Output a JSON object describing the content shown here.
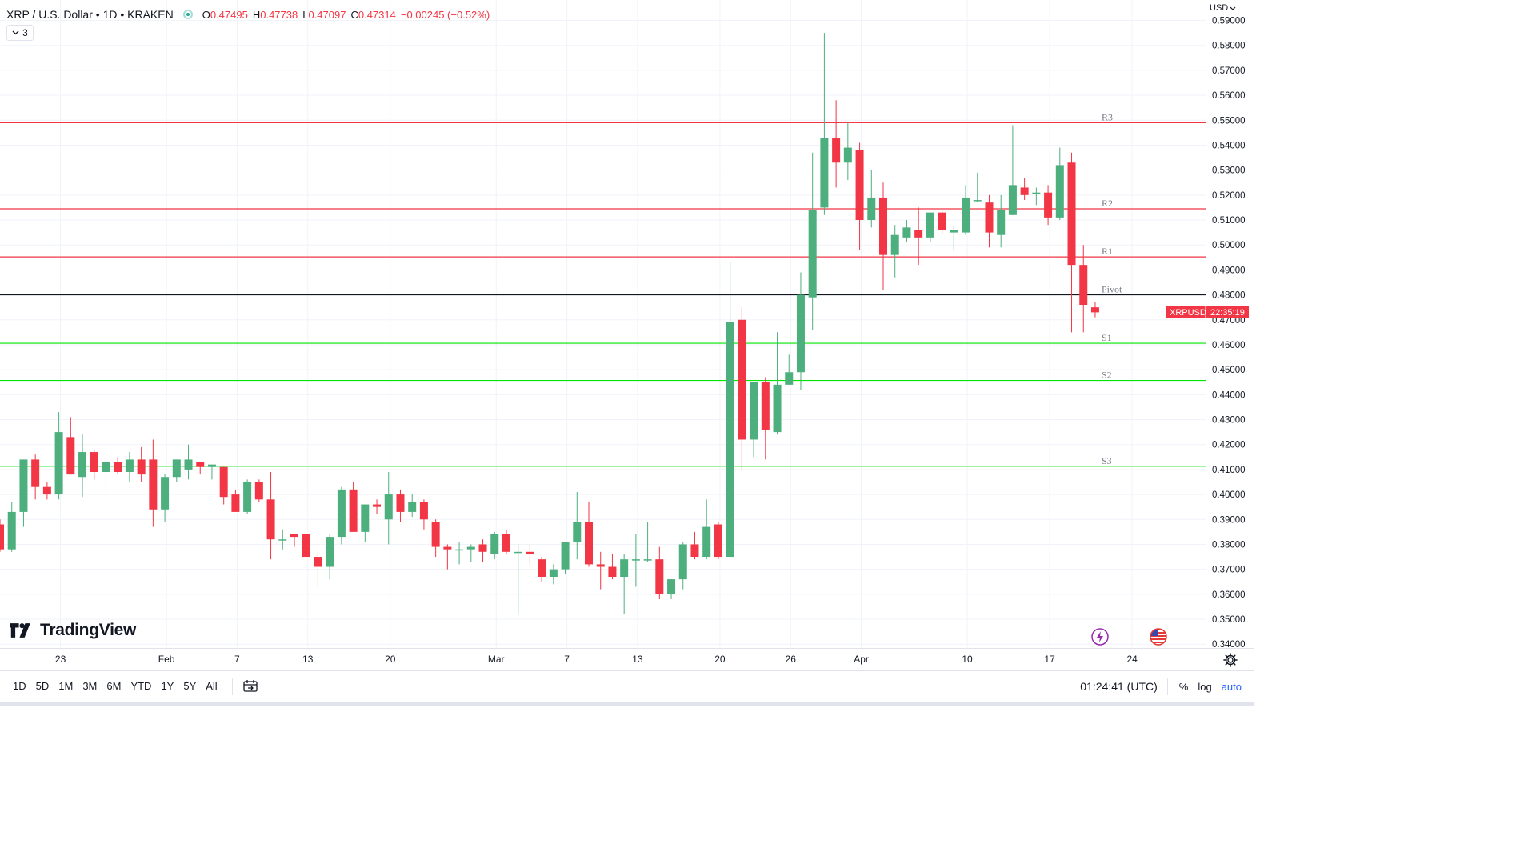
{
  "legend": {
    "title": "XRP / U.S. Dollar • 1D • KRAKEN",
    "o_label": "O",
    "o": "0.47495",
    "h_label": "H",
    "h": "0.47738",
    "l_label": "L",
    "l": "0.47097",
    "c_label": "C",
    "c": "0.47314",
    "change": "−0.00245 (−0.52%)"
  },
  "indicators_count": "3",
  "currency": "USD",
  "symbol_badge": {
    "symbol": "XRPUSD",
    "countdown": "22:35:19",
    "price": 0.47314,
    "color": "#f23645"
  },
  "logo": {
    "text": "TradingView"
  },
  "bottom_bar": {
    "ranges": [
      "1D",
      "5D",
      "1M",
      "3M",
      "6M",
      "YTD",
      "1Y",
      "5Y",
      "All"
    ],
    "clock": "01:24:41 (UTC)",
    "percent": "%",
    "log": "log",
    "auto": "auto"
  },
  "icons": [
    "live-status-icon",
    "chevron-down-icon",
    "goto-date-icon",
    "settings-gear-icon",
    "lightning-icon",
    "us-flag-icon",
    "tradingview-logo-icon"
  ],
  "colors": {
    "up": "#26a69a",
    "up_body": "#4caf7d",
    "down": "#f23645",
    "resistance": "#f23645",
    "support": "#00e600",
    "pivot": "#131722"
  },
  "chart_data": {
    "type": "candlestick",
    "title": "XRP / U.S. Dollar • 1D • KRAKEN",
    "ylim": [
      0.34,
      0.595
    ],
    "y_ticks": [
      0.59,
      0.58,
      0.57,
      0.56,
      0.55,
      0.54,
      0.53,
      0.52,
      0.51,
      0.5,
      0.49,
      0.48,
      0.47,
      0.46,
      0.45,
      0.44,
      0.43,
      0.42,
      0.41,
      0.4,
      0.39,
      0.38,
      0.37,
      0.36,
      0.35,
      0.34
    ],
    "y_tick_labels": [
      "0.59000",
      "0.58000",
      "0.57000",
      "0.56000",
      "0.55000",
      "0.54000",
      "0.53000",
      "0.52000",
      "0.51000",
      "0.50000",
      "0.49000",
      "0.48000",
      "0.47000",
      "0.46000",
      "0.45000",
      "0.44000",
      "0.43000",
      "0.42000",
      "0.41000",
      "0.40000",
      "0.39000",
      "0.38000",
      "0.37000",
      "0.36000",
      "0.35000",
      "0.34000"
    ],
    "x_ticks": [
      {
        "label": "23",
        "index": 5
      },
      {
        "label": "Feb",
        "index": 14
      },
      {
        "label": "7",
        "index": 20
      },
      {
        "label": "13",
        "index": 26
      },
      {
        "label": "20",
        "index": 33
      },
      {
        "label": "Mar",
        "index": 42
      },
      {
        "label": "7",
        "index": 48
      },
      {
        "label": "13",
        "index": 54
      },
      {
        "label": "20",
        "index": 61
      },
      {
        "label": "26",
        "index": 67
      },
      {
        "label": "Apr",
        "index": 73
      },
      {
        "label": "10",
        "index": 82
      },
      {
        "label": "17",
        "index": 89
      },
      {
        "label": "24",
        "index": 96
      }
    ],
    "levels": [
      {
        "name": "R3",
        "value": 0.549,
        "kind": "resistance"
      },
      {
        "name": "R2",
        "value": 0.5145,
        "kind": "resistance"
      },
      {
        "name": "R1",
        "value": 0.4952,
        "kind": "resistance"
      },
      {
        "name": "Pivot",
        "value": 0.48,
        "kind": "pivot"
      },
      {
        "name": "S1",
        "value": 0.4606,
        "kind": "support"
      },
      {
        "name": "S2",
        "value": 0.4457,
        "kind": "support"
      },
      {
        "name": "S3",
        "value": 0.4113,
        "kind": "support"
      }
    ],
    "candles": [
      [
        0.388,
        0.39,
        0.377,
        0.378
      ],
      [
        0.378,
        0.397,
        0.377,
        0.393
      ],
      [
        0.393,
        0.414,
        0.387,
        0.414
      ],
      [
        0.414,
        0.416,
        0.398,
        0.403
      ],
      [
        0.403,
        0.405,
        0.398,
        0.4
      ],
      [
        0.4,
        0.433,
        0.398,
        0.425
      ],
      [
        0.423,
        0.431,
        0.408,
        0.408
      ],
      [
        0.407,
        0.424,
        0.399,
        0.417
      ],
      [
        0.417,
        0.418,
        0.406,
        0.409
      ],
      [
        0.409,
        0.415,
        0.399,
        0.413
      ],
      [
        0.413,
        0.415,
        0.408,
        0.409
      ],
      [
        0.409,
        0.417,
        0.405,
        0.414
      ],
      [
        0.414,
        0.419,
        0.405,
        0.408
      ],
      [
        0.414,
        0.422,
        0.387,
        0.394
      ],
      [
        0.394,
        0.408,
        0.389,
        0.407
      ],
      [
        0.407,
        0.414,
        0.405,
        0.414
      ],
      [
        0.41,
        0.42,
        0.406,
        0.414
      ],
      [
        0.413,
        0.413,
        0.408,
        0.411
      ],
      [
        0.411,
        0.412,
        0.406,
        0.412
      ],
      [
        0.411,
        0.411,
        0.396,
        0.399
      ],
      [
        0.4,
        0.402,
        0.393,
        0.393
      ],
      [
        0.393,
        0.406,
        0.392,
        0.405
      ],
      [
        0.405,
        0.406,
        0.397,
        0.398
      ],
      [
        0.398,
        0.409,
        0.374,
        0.382
      ],
      [
        0.382,
        0.386,
        0.378,
        0.382
      ],
      [
        0.384,
        0.384,
        0.379,
        0.383
      ],
      [
        0.384,
        0.384,
        0.375,
        0.375
      ],
      [
        0.375,
        0.377,
        0.363,
        0.371
      ],
      [
        0.371,
        0.384,
        0.366,
        0.383
      ],
      [
        0.383,
        0.403,
        0.38,
        0.402
      ],
      [
        0.402,
        0.405,
        0.387,
        0.385
      ],
      [
        0.385,
        0.396,
        0.381,
        0.396
      ],
      [
        0.396,
        0.398,
        0.392,
        0.395
      ],
      [
        0.39,
        0.409,
        0.38,
        0.4
      ],
      [
        0.4,
        0.402,
        0.389,
        0.393
      ],
      [
        0.393,
        0.4,
        0.391,
        0.397
      ],
      [
        0.397,
        0.398,
        0.386,
        0.39
      ],
      [
        0.389,
        0.39,
        0.375,
        0.379
      ],
      [
        0.379,
        0.38,
        0.37,
        0.378
      ],
      [
        0.378,
        0.381,
        0.372,
        0.378
      ],
      [
        0.378,
        0.38,
        0.373,
        0.379
      ],
      [
        0.38,
        0.382,
        0.373,
        0.377
      ],
      [
        0.376,
        0.385,
        0.374,
        0.384
      ],
      [
        0.384,
        0.386,
        0.376,
        0.377
      ],
      [
        0.377,
        0.38,
        0.352,
        0.377
      ],
      [
        0.377,
        0.38,
        0.372,
        0.376
      ],
      [
        0.374,
        0.375,
        0.365,
        0.367
      ],
      [
        0.367,
        0.372,
        0.364,
        0.37
      ],
      [
        0.37,
        0.38,
        0.368,
        0.381
      ],
      [
        0.381,
        0.401,
        0.374,
        0.389
      ],
      [
        0.389,
        0.397,
        0.371,
        0.372
      ],
      [
        0.372,
        0.377,
        0.362,
        0.371
      ],
      [
        0.371,
        0.376,
        0.366,
        0.367
      ],
      [
        0.367,
        0.376,
        0.352,
        0.374
      ],
      [
        0.374,
        0.384,
        0.363,
        0.374
      ],
      [
        0.374,
        0.389,
        0.373,
        0.374
      ],
      [
        0.374,
        0.379,
        0.358,
        0.36
      ],
      [
        0.36,
        0.366,
        0.358,
        0.366
      ],
      [
        0.366,
        0.381,
        0.362,
        0.38
      ],
      [
        0.38,
        0.385,
        0.374,
        0.375
      ],
      [
        0.375,
        0.398,
        0.374,
        0.387
      ],
      [
        0.388,
        0.389,
        0.374,
        0.375
      ],
      [
        0.375,
        0.493,
        0.375,
        0.469
      ],
      [
        0.47,
        0.475,
        0.41,
        0.422
      ],
      [
        0.422,
        0.445,
        0.415,
        0.445
      ],
      [
        0.445,
        0.447,
        0.414,
        0.426
      ],
      [
        0.425,
        0.465,
        0.424,
        0.444
      ],
      [
        0.444,
        0.456,
        0.444,
        0.449
      ],
      [
        0.449,
        0.489,
        0.442,
        0.48
      ],
      [
        0.479,
        0.537,
        0.466,
        0.514
      ],
      [
        0.515,
        0.585,
        0.512,
        0.543
      ],
      [
        0.543,
        0.558,
        0.523,
        0.533
      ],
      [
        0.533,
        0.549,
        0.526,
        0.539
      ],
      [
        0.538,
        0.541,
        0.498,
        0.51
      ],
      [
        0.51,
        0.53,
        0.507,
        0.519
      ],
      [
        0.519,
        0.525,
        0.482,
        0.496
      ],
      [
        0.496,
        0.508,
        0.487,
        0.504
      ],
      [
        0.503,
        0.51,
        0.501,
        0.507
      ],
      [
        0.506,
        0.515,
        0.492,
        0.503
      ],
      [
        0.503,
        0.513,
        0.501,
        0.513
      ],
      [
        0.513,
        0.514,
        0.504,
        0.506
      ],
      [
        0.505,
        0.508,
        0.498,
        0.506
      ],
      [
        0.505,
        0.524,
        0.504,
        0.519
      ],
      [
        0.518,
        0.529,
        0.517,
        0.518
      ],
      [
        0.517,
        0.52,
        0.499,
        0.505
      ],
      [
        0.504,
        0.52,
        0.499,
        0.514
      ],
      [
        0.512,
        0.548,
        0.512,
        0.524
      ],
      [
        0.523,
        0.527,
        0.518,
        0.52
      ],
      [
        0.521,
        0.523,
        0.516,
        0.521
      ],
      [
        0.521,
        0.524,
        0.508,
        0.511
      ],
      [
        0.511,
        0.539,
        0.51,
        0.532
      ],
      [
        0.533,
        0.537,
        0.465,
        0.492
      ],
      [
        0.492,
        0.5,
        0.465,
        0.476
      ],
      [
        0.475,
        0.477,
        0.471,
        0.473
      ]
    ]
  }
}
